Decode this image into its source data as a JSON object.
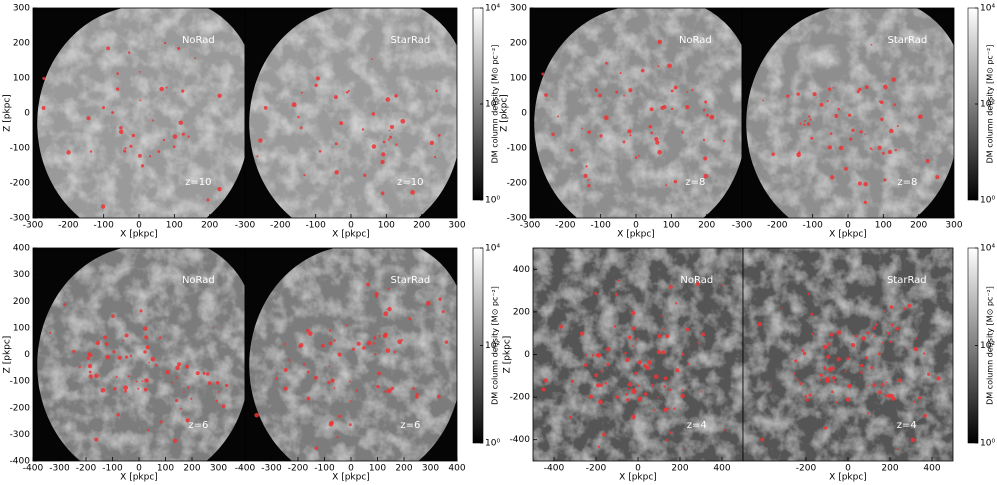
{
  "chart_data": [
    {
      "type": "image",
      "panels": [
        "NoRad",
        "StarRad"
      ],
      "redshift": "z=10",
      "xlabel": "X [pkpc]",
      "ylabel": "Z [pkpc]",
      "xlim": [
        -300,
        300
      ],
      "ylim": [
        -300,
        300
      ],
      "xticks": [
        [
          -300,
          -200,
          -100,
          0,
          100,
          200
        ],
        [
          -300,
          -200,
          -100,
          0,
          100,
          200,
          300
        ]
      ],
      "yticks": [
        -300,
        -200,
        -100,
        0,
        100,
        200,
        300
      ],
      "colorbar": {
        "label": "DM column density [M⊙ pc⁻²]",
        "log": true,
        "lim": [
          1,
          10000
        ],
        "ticks": [
          {
            "value": 1,
            "label": "10⁰"
          },
          {
            "value": 100,
            "label": "10²"
          },
          {
            "value": 10000,
            "label": "10⁴"
          }
        ]
      }
    },
    {
      "type": "image",
      "panels": [
        "NoRad",
        "StarRad"
      ],
      "redshift": "z=8",
      "xlabel": "X [pkpc]",
      "ylabel": "Z [pkpc]",
      "xlim": [
        -300,
        300
      ],
      "ylim": [
        -300,
        300
      ],
      "xticks": [
        [
          -300,
          -200,
          -100,
          0,
          100,
          200
        ],
        [
          -300,
          -200,
          -100,
          0,
          100,
          200,
          300
        ]
      ],
      "yticks": [
        -300,
        -200,
        -100,
        0,
        100,
        200,
        300
      ],
      "colorbar": {
        "label": "DM column density [M⊙ pc⁻²]",
        "log": true,
        "lim": [
          1,
          10000
        ],
        "ticks": [
          {
            "value": 1,
            "label": "10⁰"
          },
          {
            "value": 100,
            "label": "10²"
          },
          {
            "value": 10000,
            "label": "10⁴"
          }
        ]
      }
    },
    {
      "type": "image",
      "panels": [
        "NoRad",
        "StarRad"
      ],
      "redshift": "z=6",
      "xlabel": "X [pkpc]",
      "ylabel": "Z [pkpc]",
      "xlim": [
        -400,
        400
      ],
      "ylim": [
        -400,
        400
      ],
      "xticks": [
        [
          -400,
          -300,
          -200,
          -100,
          0,
          100,
          200,
          300
        ],
        [
          -400,
          -300,
          -200,
          -100,
          0,
          100,
          200,
          300,
          400
        ]
      ],
      "yticks": [
        -400,
        -300,
        -200,
        -100,
        0,
        100,
        200,
        300,
        400
      ],
      "colorbar": {
        "label": "DM column density [M⊙ pc⁻²]",
        "log": true,
        "lim": [
          1,
          10000
        ],
        "ticks": [
          {
            "value": 1,
            "label": "10⁰"
          },
          {
            "value": 100,
            "label": "10²"
          },
          {
            "value": 10000,
            "label": "10⁴"
          }
        ]
      }
    },
    {
      "type": "image",
      "panels": [
        "NoRad",
        "StarRad"
      ],
      "redshift": "z=4",
      "xlabel": "X [pkpc]",
      "ylabel": "Z [pkpc]",
      "xlim": [
        -500,
        500
      ],
      "ylim": [
        -500,
        500
      ],
      "xticks": [
        [
          -400,
          -200,
          0,
          200,
          400
        ],
        [
          -200,
          0,
          200,
          400
        ]
      ],
      "yticks": [
        -400,
        -200,
        0,
        200,
        400
      ],
      "colorbar": {
        "label": "DM column density [M⊙ pc⁻²]",
        "log": true,
        "lim": [
          1,
          10000
        ],
        "ticks": [
          {
            "value": 1,
            "label": "10⁰"
          },
          {
            "value": 100,
            "label": "10²"
          },
          {
            "value": 10000,
            "label": "10⁴"
          }
        ]
      }
    }
  ]
}
